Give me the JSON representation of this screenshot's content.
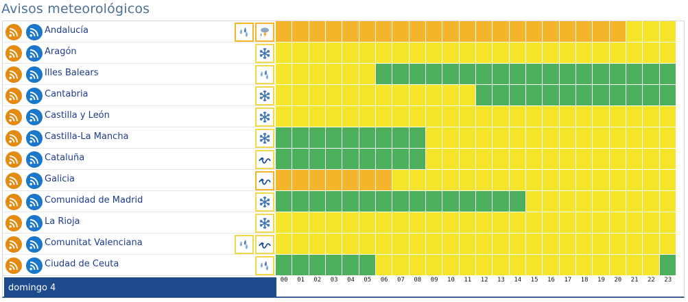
{
  "title": "Avisos meteorológicos",
  "colors": {
    "green": "#4caf5c",
    "yellow": "#f4e52a",
    "orange": "#f5b52b",
    "rss_orange": "#e58a10",
    "rss_blue": "#1b77c9",
    "footer_bg": "#1c4a8a"
  },
  "legend": {
    "status_codes": {
      "G": "green",
      "Y": "yellow",
      "O": "orange"
    }
  },
  "day_label": "domingo 4",
  "hours": [
    "00",
    "01",
    "02",
    "03",
    "04",
    "05",
    "06",
    "07",
    "08",
    "09",
    "10",
    "11",
    "12",
    "13",
    "14",
    "15",
    "16",
    "17",
    "18",
    "19",
    "20",
    "21",
    "22",
    "23"
  ],
  "regions": [
    {
      "name": "Andalucía",
      "icons": [
        "rain-icon",
        "storm-icon"
      ],
      "icon_borders": [
        "orange",
        "orange"
      ],
      "levels": [
        "O",
        "O",
        "O",
        "O",
        "O",
        "O",
        "O",
        "O",
        "O",
        "O",
        "O",
        "O",
        "O",
        "O",
        "O",
        "O",
        "O",
        "O",
        "O",
        "O",
        "O",
        "Y",
        "Y",
        "Y"
      ]
    },
    {
      "name": "Aragón",
      "icons": [
        "snow-icon"
      ],
      "icon_borders": [
        "yellow"
      ],
      "levels": [
        "Y",
        "Y",
        "Y",
        "Y",
        "Y",
        "Y",
        "Y",
        "Y",
        "Y",
        "Y",
        "Y",
        "Y",
        "Y",
        "Y",
        "Y",
        "Y",
        "Y",
        "Y",
        "Y",
        "Y",
        "Y",
        "Y",
        "Y",
        "Y"
      ]
    },
    {
      "name": "Illes Balears",
      "icons": [
        "rain-icon"
      ],
      "icon_borders": [
        "yellow"
      ],
      "levels": [
        "Y",
        "Y",
        "Y",
        "Y",
        "Y",
        "Y",
        "G",
        "G",
        "G",
        "G",
        "G",
        "G",
        "G",
        "G",
        "G",
        "G",
        "G",
        "G",
        "G",
        "G",
        "G",
        "G",
        "G",
        "G"
      ]
    },
    {
      "name": "Cantabria",
      "icons": [
        "snow-icon"
      ],
      "icon_borders": [
        "yellow"
      ],
      "levels": [
        "Y",
        "Y",
        "Y",
        "Y",
        "Y",
        "Y",
        "Y",
        "Y",
        "Y",
        "Y",
        "Y",
        "Y",
        "G",
        "G",
        "G",
        "G",
        "G",
        "G",
        "G",
        "G",
        "G",
        "G",
        "G",
        "G"
      ]
    },
    {
      "name": "Castilla y León",
      "icons": [
        "snow-icon"
      ],
      "icon_borders": [
        "yellow"
      ],
      "levels": [
        "Y",
        "Y",
        "Y",
        "Y",
        "Y",
        "Y",
        "Y",
        "Y",
        "Y",
        "Y",
        "Y",
        "Y",
        "Y",
        "Y",
        "Y",
        "Y",
        "Y",
        "Y",
        "Y",
        "Y",
        "Y",
        "Y",
        "Y",
        "Y"
      ]
    },
    {
      "name": "Castilla-La Mancha",
      "icons": [
        "snow-icon"
      ],
      "icon_borders": [
        "yellow"
      ],
      "levels": [
        "G",
        "G",
        "G",
        "G",
        "G",
        "G",
        "G",
        "G",
        "G",
        "Y",
        "Y",
        "Y",
        "Y",
        "Y",
        "Y",
        "Y",
        "Y",
        "Y",
        "Y",
        "Y",
        "Y",
        "Y",
        "Y",
        "Y"
      ]
    },
    {
      "name": "Cataluña",
      "icons": [
        "coastal-icon"
      ],
      "icon_borders": [
        "yellow"
      ],
      "levels": [
        "G",
        "G",
        "G",
        "G",
        "G",
        "G",
        "G",
        "G",
        "G",
        "Y",
        "Y",
        "Y",
        "Y",
        "Y",
        "Y",
        "Y",
        "Y",
        "Y",
        "Y",
        "Y",
        "Y",
        "Y",
        "Y",
        "Y"
      ]
    },
    {
      "name": "Galicia",
      "icons": [
        "coastal-icon"
      ],
      "icon_borders": [
        "orange"
      ],
      "levels": [
        "O",
        "O",
        "O",
        "O",
        "O",
        "O",
        "O",
        "Y",
        "Y",
        "Y",
        "Y",
        "Y",
        "Y",
        "Y",
        "Y",
        "Y",
        "Y",
        "Y",
        "Y",
        "Y",
        "Y",
        "Y",
        "Y",
        "Y"
      ]
    },
    {
      "name": "Comunidad de Madrid",
      "icons": [
        "snow-icon"
      ],
      "icon_borders": [
        "yellow"
      ],
      "levels": [
        "G",
        "G",
        "G",
        "G",
        "G",
        "G",
        "G",
        "G",
        "G",
        "G",
        "G",
        "G",
        "G",
        "G",
        "G",
        "Y",
        "Y",
        "Y",
        "Y",
        "Y",
        "Y",
        "Y",
        "Y",
        "Y"
      ]
    },
    {
      "name": "La Rioja",
      "icons": [
        "snow-icon"
      ],
      "icon_borders": [
        "yellow"
      ],
      "levels": [
        "Y",
        "Y",
        "Y",
        "Y",
        "Y",
        "Y",
        "Y",
        "Y",
        "Y",
        "Y",
        "Y",
        "Y",
        "Y",
        "Y",
        "Y",
        "Y",
        "Y",
        "Y",
        "Y",
        "Y",
        "Y",
        "Y",
        "Y",
        "Y"
      ]
    },
    {
      "name": "Comunitat Valenciana",
      "icons": [
        "rain-icon",
        "coastal-icon"
      ],
      "icon_borders": [
        "yellow",
        "yellow"
      ],
      "levels": [
        "Y",
        "Y",
        "Y",
        "Y",
        "Y",
        "Y",
        "Y",
        "Y",
        "Y",
        "Y",
        "Y",
        "Y",
        "Y",
        "Y",
        "Y",
        "Y",
        "Y",
        "Y",
        "Y",
        "Y",
        "Y",
        "Y",
        "Y",
        "Y"
      ]
    },
    {
      "name": "Ciudad de Ceuta",
      "icons": [
        "rain-icon"
      ],
      "icon_borders": [
        "yellow"
      ],
      "levels": [
        "G",
        "G",
        "G",
        "G",
        "G",
        "G",
        "Y",
        "Y",
        "Y",
        "Y",
        "Y",
        "Y",
        "Y",
        "Y",
        "Y",
        "Y",
        "Y",
        "Y",
        "Y",
        "Y",
        "Y",
        "Y",
        "Y",
        "G"
      ]
    }
  ]
}
